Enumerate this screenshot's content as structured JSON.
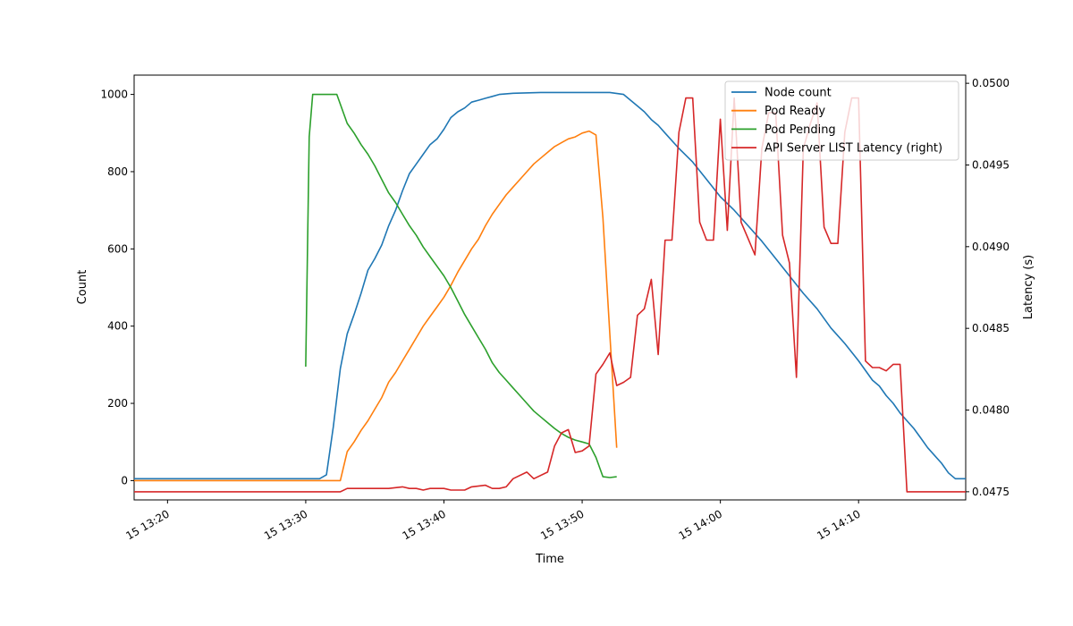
{
  "chart_data": {
    "type": "line",
    "xlabel": "Time",
    "ylabel_left": "Count",
    "ylabel_right": "Latency (s)",
    "x_ticks": [
      "15 13:20",
      "15 13:30",
      "15 13:40",
      "15 13:50",
      "15 14:00",
      "15 14:10"
    ],
    "x_range": [
      "13:17:35",
      "14:17:45"
    ],
    "y_left_range": [
      -50,
      1050
    ],
    "y_left_ticks": [
      "0",
      "200",
      "400",
      "600",
      "800",
      "1000"
    ],
    "y_right_range": [
      0.04745,
      0.05005
    ],
    "y_right_ticks": [
      "0.0475",
      "0.0480",
      "0.0485",
      "0.0490",
      "0.0495",
      "0.0500"
    ],
    "legend_position": "upper right",
    "series": [
      {
        "name": "Node count",
        "axis": "left",
        "color": "#1f77b4",
        "points": [
          [
            "13:17:35",
            5
          ],
          [
            "13:31:00",
            5
          ],
          [
            "13:31:30",
            15
          ],
          [
            "13:32:00",
            140
          ],
          [
            "13:32:30",
            290
          ],
          [
            "13:33:00",
            380
          ],
          [
            "13:33:30",
            430
          ],
          [
            "13:34:00",
            485
          ],
          [
            "13:34:30",
            545
          ],
          [
            "13:35:00",
            575
          ],
          [
            "13:35:30",
            610
          ],
          [
            "13:36:00",
            660
          ],
          [
            "13:36:30",
            700
          ],
          [
            "13:37:00",
            750
          ],
          [
            "13:37:30",
            795
          ],
          [
            "13:38:00",
            820
          ],
          [
            "13:38:30",
            845
          ],
          [
            "13:39:00",
            870
          ],
          [
            "13:39:30",
            885
          ],
          [
            "13:40:00",
            910
          ],
          [
            "13:40:30",
            940
          ],
          [
            "13:41:00",
            955
          ],
          [
            "13:41:30",
            965
          ],
          [
            "13:42:00",
            980
          ],
          [
            "13:42:30",
            985
          ],
          [
            "13:43:00",
            990
          ],
          [
            "13:43:30",
            995
          ],
          [
            "13:44:00",
            1000
          ],
          [
            "13:45:00",
            1003
          ],
          [
            "13:47:00",
            1005
          ],
          [
            "13:52:00",
            1005
          ],
          [
            "13:53:00",
            1000
          ],
          [
            "13:53:30",
            985
          ],
          [
            "13:54:00",
            970
          ],
          [
            "13:54:30",
            955
          ],
          [
            "13:55:00",
            935
          ],
          [
            "13:55:30",
            920
          ],
          [
            "13:56:00",
            900
          ],
          [
            "13:57:00",
            860
          ],
          [
            "13:58:00",
            825
          ],
          [
            "13:59:00",
            780
          ],
          [
            "14:00:00",
            735
          ],
          [
            "14:01:00",
            700
          ],
          [
            "14:02:00",
            660
          ],
          [
            "14:03:00",
            620
          ],
          [
            "14:04:00",
            575
          ],
          [
            "14:05:00",
            530
          ],
          [
            "14:06:00",
            485
          ],
          [
            "14:07:00",
            445
          ],
          [
            "14:08:00",
            395
          ],
          [
            "14:09:00",
            355
          ],
          [
            "14:10:00",
            310
          ],
          [
            "14:11:00",
            260
          ],
          [
            "14:11:30",
            245
          ],
          [
            "14:12:00",
            220
          ],
          [
            "14:12:30",
            200
          ],
          [
            "14:13:00",
            175
          ],
          [
            "14:13:30",
            155
          ],
          [
            "14:14:00",
            135
          ],
          [
            "14:14:30",
            110
          ],
          [
            "14:15:00",
            85
          ],
          [
            "14:15:30",
            65
          ],
          [
            "14:16:00",
            45
          ],
          [
            "14:16:30",
            20
          ],
          [
            "14:17:00",
            5
          ],
          [
            "14:17:45",
            5
          ]
        ]
      },
      {
        "name": "Pod Ready",
        "axis": "left",
        "color": "#ff7f0e",
        "points": [
          [
            "13:17:35",
            0
          ],
          [
            "13:32:00",
            0
          ],
          [
            "13:32:30",
            0
          ],
          [
            "13:33:00",
            75
          ],
          [
            "13:33:30",
            100
          ],
          [
            "13:34:00",
            130
          ],
          [
            "13:34:30",
            155
          ],
          [
            "13:35:00",
            185
          ],
          [
            "13:35:30",
            215
          ],
          [
            "13:36:00",
            255
          ],
          [
            "13:36:30",
            280
          ],
          [
            "13:37:00",
            310
          ],
          [
            "13:37:30",
            340
          ],
          [
            "13:38:00",
            370
          ],
          [
            "13:38:30",
            400
          ],
          [
            "13:39:00",
            425
          ],
          [
            "13:39:30",
            450
          ],
          [
            "13:40:00",
            475
          ],
          [
            "13:40:30",
            505
          ],
          [
            "13:41:00",
            540
          ],
          [
            "13:41:30",
            570
          ],
          [
            "13:42:00",
            600
          ],
          [
            "13:42:30",
            625
          ],
          [
            "13:43:00",
            660
          ],
          [
            "13:43:30",
            690
          ],
          [
            "13:44:00",
            715
          ],
          [
            "13:44:30",
            740
          ],
          [
            "13:45:00",
            760
          ],
          [
            "13:45:30",
            780
          ],
          [
            "13:46:00",
            800
          ],
          [
            "13:46:30",
            820
          ],
          [
            "13:47:00",
            835
          ],
          [
            "13:47:30",
            850
          ],
          [
            "13:48:00",
            865
          ],
          [
            "13:48:30",
            875
          ],
          [
            "13:49:00",
            885
          ],
          [
            "13:49:30",
            890
          ],
          [
            "13:50:00",
            900
          ],
          [
            "13:50:30",
            905
          ],
          [
            "13:51:00",
            895
          ],
          [
            "13:51:30",
            680
          ],
          [
            "13:52:00",
            380
          ],
          [
            "13:52:30",
            85
          ]
        ]
      },
      {
        "name": "Pod Pending",
        "axis": "left",
        "color": "#2ca02c",
        "points": [
          [
            "13:30:00",
            295
          ],
          [
            "13:30:15",
            890
          ],
          [
            "13:30:30",
            1000
          ],
          [
            "13:31:00",
            1000
          ],
          [
            "13:32:00",
            1000
          ],
          [
            "13:32:15",
            1000
          ],
          [
            "13:33:00",
            925
          ],
          [
            "13:33:30",
            900
          ],
          [
            "13:34:00",
            870
          ],
          [
            "13:34:30",
            845
          ],
          [
            "13:35:00",
            815
          ],
          [
            "13:35:30",
            780
          ],
          [
            "13:36:00",
            745
          ],
          [
            "13:36:30",
            720
          ],
          [
            "13:37:00",
            690
          ],
          [
            "13:37:30",
            660
          ],
          [
            "13:38:00",
            635
          ],
          [
            "13:38:30",
            605
          ],
          [
            "13:39:00",
            580
          ],
          [
            "13:39:30",
            555
          ],
          [
            "13:40:00",
            530
          ],
          [
            "13:40:30",
            500
          ],
          [
            "13:41:00",
            465
          ],
          [
            "13:41:30",
            430
          ],
          [
            "13:42:00",
            400
          ],
          [
            "13:42:30",
            370
          ],
          [
            "13:43:00",
            340
          ],
          [
            "13:43:30",
            305
          ],
          [
            "13:44:00",
            280
          ],
          [
            "13:44:30",
            260
          ],
          [
            "13:45:00",
            240
          ],
          [
            "13:45:30",
            220
          ],
          [
            "13:46:00",
            200
          ],
          [
            "13:46:30",
            180
          ],
          [
            "13:47:00",
            165
          ],
          [
            "13:47:30",
            150
          ],
          [
            "13:48:00",
            135
          ],
          [
            "13:48:30",
            122
          ],
          [
            "13:49:00",
            112
          ],
          [
            "13:49:30",
            105
          ],
          [
            "13:50:00",
            100
          ],
          [
            "13:50:30",
            95
          ],
          [
            "13:51:00",
            60
          ],
          [
            "13:51:30",
            10
          ],
          [
            "13:52:00",
            8
          ],
          [
            "13:52:30",
            10
          ]
        ]
      },
      {
        "name": "API Server LIST Latency (right)",
        "axis": "right",
        "color": "#d62728",
        "points": [
          [
            "13:17:35",
            0.0475
          ],
          [
            "13:32:30",
            0.0475
          ],
          [
            "13:33:00",
            0.04752
          ],
          [
            "13:33:30",
            0.04752
          ],
          [
            "13:34:00",
            0.04752
          ],
          [
            "13:35:00",
            0.04752
          ],
          [
            "13:36:00",
            0.04752
          ],
          [
            "13:37:00",
            0.04753
          ],
          [
            "13:37:30",
            0.04752
          ],
          [
            "13:38:00",
            0.04752
          ],
          [
            "13:38:30",
            0.04751
          ],
          [
            "13:39:00",
            0.04752
          ],
          [
            "13:40:00",
            0.04752
          ],
          [
            "13:40:30",
            0.04751
          ],
          [
            "13:41:30",
            0.04751
          ],
          [
            "13:42:00",
            0.04753
          ],
          [
            "13:43:00",
            0.04754
          ],
          [
            "13:43:30",
            0.04752
          ],
          [
            "13:44:00",
            0.04752
          ],
          [
            "13:44:30",
            0.04753
          ],
          [
            "13:45:00",
            0.04758
          ],
          [
            "13:46:00",
            0.04762
          ],
          [
            "13:46:30",
            0.04758
          ],
          [
            "13:47:30",
            0.04762
          ],
          [
            "13:48:00",
            0.04778
          ],
          [
            "13:48:30",
            0.04786
          ],
          [
            "13:49:00",
            0.04788
          ],
          [
            "13:49:30",
            0.04774
          ],
          [
            "13:50:00",
            0.04775
          ],
          [
            "13:50:30",
            0.04778
          ],
          [
            "13:51:00",
            0.04822
          ],
          [
            "13:51:30",
            0.04828
          ],
          [
            "13:52:00",
            0.04835
          ],
          [
            "13:52:30",
            0.04815
          ],
          [
            "13:53:00",
            0.04817
          ],
          [
            "13:53:30",
            0.0482
          ],
          [
            "13:54:00",
            0.04858
          ],
          [
            "13:54:30",
            0.04862
          ],
          [
            "13:55:00",
            0.0488
          ],
          [
            "13:55:30",
            0.04834
          ],
          [
            "13:56:00",
            0.04904
          ],
          [
            "13:56:30",
            0.04904
          ],
          [
            "13:57:00",
            0.0497
          ],
          [
            "13:57:30",
            0.04991
          ],
          [
            "13:58:00",
            0.04991
          ],
          [
            "13:58:30",
            0.04915
          ],
          [
            "13:59:00",
            0.04904
          ],
          [
            "13:59:30",
            0.04904
          ],
          [
            "14:00:00",
            0.04978
          ],
          [
            "14:00:30",
            0.0491
          ],
          [
            "14:01:00",
            0.04991
          ],
          [
            "14:01:30",
            0.04915
          ],
          [
            "14:02:00",
            0.04905
          ],
          [
            "14:02:30",
            0.04895
          ],
          [
            "14:03:00",
            0.0496
          ],
          [
            "14:03:30",
            0.04982
          ],
          [
            "14:04:00",
            0.04982
          ],
          [
            "14:04:30",
            0.04907
          ],
          [
            "14:05:00",
            0.0489
          ],
          [
            "14:05:30",
            0.0482
          ],
          [
            "14:06:00",
            0.0496
          ],
          [
            "14:06:30",
            0.04975
          ],
          [
            "14:07:00",
            0.04988
          ],
          [
            "14:07:30",
            0.04912
          ],
          [
            "14:08:00",
            0.04902
          ],
          [
            "14:08:30",
            0.04902
          ],
          [
            "14:09:00",
            0.0497
          ],
          [
            "14:09:30",
            0.04991
          ],
          [
            "14:10:00",
            0.04991
          ],
          [
            "14:10:30",
            0.0483
          ],
          [
            "14:11:00",
            0.04826
          ],
          [
            "14:11:30",
            0.04826
          ],
          [
            "14:12:00",
            0.04824
          ],
          [
            "14:12:30",
            0.04828
          ],
          [
            "14:13:00",
            0.04828
          ],
          [
            "14:13:30",
            0.0475
          ],
          [
            "14:17:45",
            0.0475
          ]
        ]
      }
    ]
  }
}
